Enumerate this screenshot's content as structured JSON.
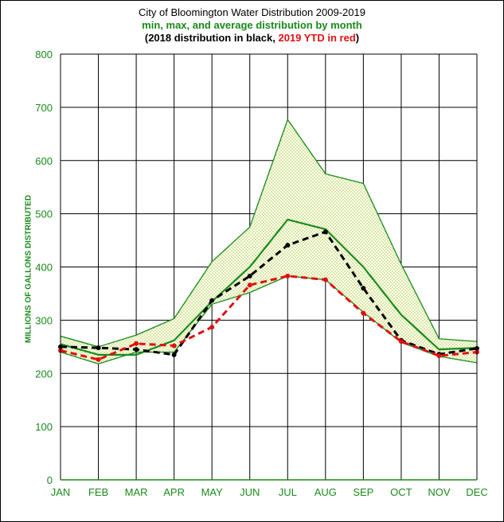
{
  "chart_data": {
    "type": "line",
    "title": "City of Bloomington Water Distribution  2009-2019",
    "subtitle": "min, max, and average distribution  by month",
    "subtitle2_black": "(2018  distribution  in black, ",
    "subtitle2_red": "2019 YTD  in red",
    "subtitle2_end": ")",
    "ylabel": "MILLIONS OF GALLONS DISTRIBUTED",
    "ylim": [
      0,
      800
    ],
    "yticks": [
      "0",
      "100",
      "200",
      "300",
      "400",
      "500",
      "600",
      "700",
      "800"
    ],
    "categories": [
      "JAN",
      "FEB",
      "MAR",
      "APR",
      "MAY",
      "JUN",
      "JUL",
      "AUG",
      "SEP",
      "OCT",
      "NOV",
      "DEC"
    ],
    "grid": true,
    "series": [
      {
        "values": [
          270,
          250,
          272,
          303,
          410,
          475,
          677,
          575,
          557,
          405,
          265,
          260
        ],
        "color": "#1a8a1a"
      },
      {
        "values": [
          240,
          218,
          240,
          240,
          330,
          352,
          383,
          376,
          315,
          258,
          232,
          220
        ],
        "color": "#1a8a1a"
      },
      {
        "values": [
          255,
          235,
          235,
          262,
          335,
          400,
          489,
          471,
          400,
          310,
          245,
          248
        ],
        "color": "#1a8a1a"
      },
      {
        "values": [
          250,
          248,
          245,
          235,
          337,
          383,
          441,
          466,
          360,
          262,
          236,
          247
        ],
        "color": "#000000"
      },
      {
        "values": [
          243,
          226,
          256,
          252,
          287,
          366,
          383,
          376,
          313,
          260,
          233,
          240
        ],
        "color": "#e01010"
      }
    ]
  }
}
